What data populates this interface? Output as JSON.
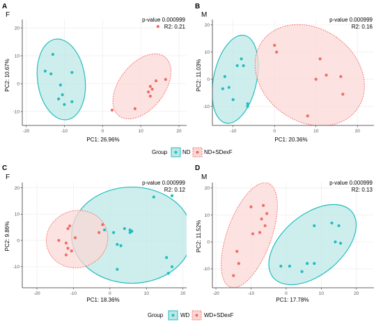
{
  "colors": {
    "group_a": "#22bdbd",
    "group_b": "#ef6c66",
    "fill_a": "#bde8e8",
    "fill_b": "#fbd8d5",
    "grid": "#ececec",
    "axis": "#333333"
  },
  "chart_data": [
    {
      "type": "scatter",
      "panel_label": "A",
      "title": "F",
      "stats": [
        "p-value 0.000999",
        "R2: 0.21"
      ],
      "xlabel": "PC1: 26.96%",
      "ylabel": "PC2: 10.67%",
      "xlim": [
        -21,
        22
      ],
      "ylim": [
        -15,
        23
      ],
      "xticks": [
        -20,
        -10,
        0,
        10,
        20
      ],
      "yticks": [
        -10,
        0,
        10,
        20
      ],
      "grid": true,
      "series": [
        {
          "name": "ND",
          "points": [
            [
              -13,
              10.5
            ],
            [
              -15,
              4.5
            ],
            [
              -13.5,
              3.5
            ],
            [
              -11,
              -0.5
            ],
            [
              -10.5,
              -4
            ],
            [
              -8,
              4
            ],
            [
              -11.5,
              -5.5
            ],
            [
              -10,
              -7.5
            ],
            [
              -8,
              -6.5
            ]
          ],
          "ellipse": {
            "cx": -10.8,
            "cy": 1.5,
            "rx": 6.2,
            "ry": 14.6,
            "angle_deg": -8,
            "line": "solid"
          }
        },
        {
          "name": "ND+SDexF",
          "points": [
            [
              14.5,
              20.5
            ],
            [
              16.5,
              1.5
            ],
            [
              14,
              1
            ],
            [
              12.5,
              -1
            ],
            [
              13,
              -2
            ],
            [
              12,
              -3
            ],
            [
              12.5,
              -4.5
            ],
            [
              8.5,
              -9
            ],
            [
              2.5,
              -9.5
            ]
          ],
          "ellipse": {
            "cx": 10.3,
            "cy": -1,
            "rx": 5.9,
            "ry": 13.4,
            "angle_deg": 38,
            "line": "dashed"
          }
        }
      ]
    },
    {
      "type": "scatter",
      "panel_label": "B",
      "title": "M",
      "stats": [
        "p-value 0.000999",
        "R2: 0.16"
      ],
      "xlabel": "PC1: 20.36%",
      "ylabel": "PC2: 11.03%",
      "xlim": [
        -15,
        24
      ],
      "ylim": [
        -17,
        22
      ],
      "xticks": [
        -10,
        0,
        10,
        20
      ],
      "yticks": [
        -10,
        0,
        10,
        20
      ],
      "grid": true,
      "series": [
        {
          "name": "ND",
          "points": [
            [
              -8,
              7.5
            ],
            [
              -9,
              5
            ],
            [
              -7.5,
              5
            ],
            [
              -12,
              1
            ],
            [
              -11,
              -3
            ],
            [
              -12.5,
              -3.5
            ],
            [
              -10,
              -7.5
            ],
            [
              -6.5,
              -9
            ],
            [
              -6.5,
              -10
            ]
          ],
          "ellipse": {
            "cx": -9.5,
            "cy": 0,
            "rx": 5.2,
            "ry": 16.5,
            "angle_deg": 12,
            "line": "solid"
          }
        },
        {
          "name": "ND+SDexF",
          "points": [
            [
              0,
              12.5
            ],
            [
              0.5,
              10
            ],
            [
              11,
              7.5
            ],
            [
              12.5,
              1.5
            ],
            [
              16,
              1
            ],
            [
              10,
              0
            ],
            [
              16.5,
              -5.5
            ],
            [
              8,
              -13.5
            ]
          ],
          "ellipse": {
            "cx": 8.5,
            "cy": 1.5,
            "rx": 11.2,
            "ry": 21.5,
            "angle_deg": -55,
            "line": "dashed"
          }
        }
      ]
    },
    {
      "type": "scatter",
      "panel_label": "C",
      "title": "F",
      "stats": [
        "p-value 0.000999",
        "R2: 0.12"
      ],
      "xlabel": "PC1: 18.36%",
      "ylabel": "PC2: 9.86%",
      "xlim": [
        -24,
        21
      ],
      "ylim": [
        -18,
        22
      ],
      "xticks": [
        -20,
        -10,
        0,
        10,
        20
      ],
      "yticks": [
        -10,
        0,
        10,
        20
      ],
      "grid": true,
      "series": [
        {
          "name": "WD",
          "points": [
            [
              12,
              16.5
            ],
            [
              17,
              17
            ],
            [
              5.5,
              4
            ],
            [
              6,
              3.5
            ],
            [
              5.5,
              3
            ],
            [
              -1.5,
              4
            ],
            [
              1,
              3
            ],
            [
              4,
              4.5
            ],
            [
              2,
              -1.5
            ],
            [
              3,
              -2
            ],
            [
              2,
              -11
            ],
            [
              15.5,
              -6.5
            ],
            [
              17,
              -10
            ],
            [
              16,
              -12.5
            ]
          ],
          "ellipse": {
            "cx": 6,
            "cy": 2,
            "rx": 16.5,
            "ry": 18.3,
            "angle_deg": 0,
            "line": "solid"
          }
        },
        {
          "name": "WD+SDexF",
          "points": [
            [
              -11,
              5.5
            ],
            [
              -11.5,
              4.5
            ],
            [
              -9.5,
              1
            ],
            [
              -2,
              6
            ],
            [
              -3,
              3
            ],
            [
              -14,
              0
            ],
            [
              -12,
              -1
            ],
            [
              -11.5,
              -3
            ],
            [
              -12,
              -5.5
            ],
            [
              -10.5,
              -4
            ]
          ],
          "ellipse": {
            "cx": -9,
            "cy": 0.5,
            "rx": 7.8,
            "ry": 11.8,
            "angle_deg": 72,
            "line": "dashed"
          }
        }
      ]
    },
    {
      "type": "scatter",
      "panel_label": "D",
      "title": "M",
      "stats": [
        "p-value 0.000999",
        "R2: 0.13"
      ],
      "xlabel": "PC1: 17.78%",
      "ylabel": "PC2: 11.52%",
      "xlim": [
        -21,
        25
      ],
      "ylim": [
        -17,
        22
      ],
      "xticks": [
        -20,
        -10,
        0,
        10,
        20
      ],
      "yticks": [
        -10,
        0,
        10,
        20
      ],
      "grid": true,
      "series": [
        {
          "name": "WD",
          "points": [
            [
              13,
              7
            ],
            [
              15,
              6
            ],
            [
              8,
              6
            ],
            [
              14,
              0
            ],
            [
              15.5,
              -0.5
            ],
            [
              6,
              -8
            ],
            [
              8,
              -8
            ],
            [
              1,
              -9
            ],
            [
              -1.5,
              -9
            ],
            [
              4.5,
              -11
            ]
          ],
          "ellipse": {
            "cx": 7.5,
            "cy": -1,
            "rx": 8.5,
            "ry": 19,
            "angle_deg": 50,
            "line": "solid"
          }
        },
        {
          "name": "WD+SDexF",
          "points": [
            [
              -6.5,
              13.5
            ],
            [
              -5.5,
              10.5
            ],
            [
              -7,
              8.5
            ],
            [
              -10,
              13
            ],
            [
              -6,
              6
            ],
            [
              -7.5,
              3.5
            ],
            [
              -9.5,
              3
            ],
            [
              -14,
              -3.5
            ],
            [
              -13.5,
              -8
            ],
            [
              -15,
              -12.5
            ]
          ],
          "ellipse": {
            "cx": -10.5,
            "cy": 2.5,
            "rx": 6.3,
            "ry": 20.5,
            "angle_deg": 20,
            "line": "dashed"
          }
        }
      ]
    }
  ],
  "legends": [
    {
      "title": "Group",
      "items": [
        "ND",
        "ND+SDexF"
      ]
    },
    {
      "title": "Group",
      "items": [
        "WD",
        "WD+SDexF"
      ]
    }
  ]
}
